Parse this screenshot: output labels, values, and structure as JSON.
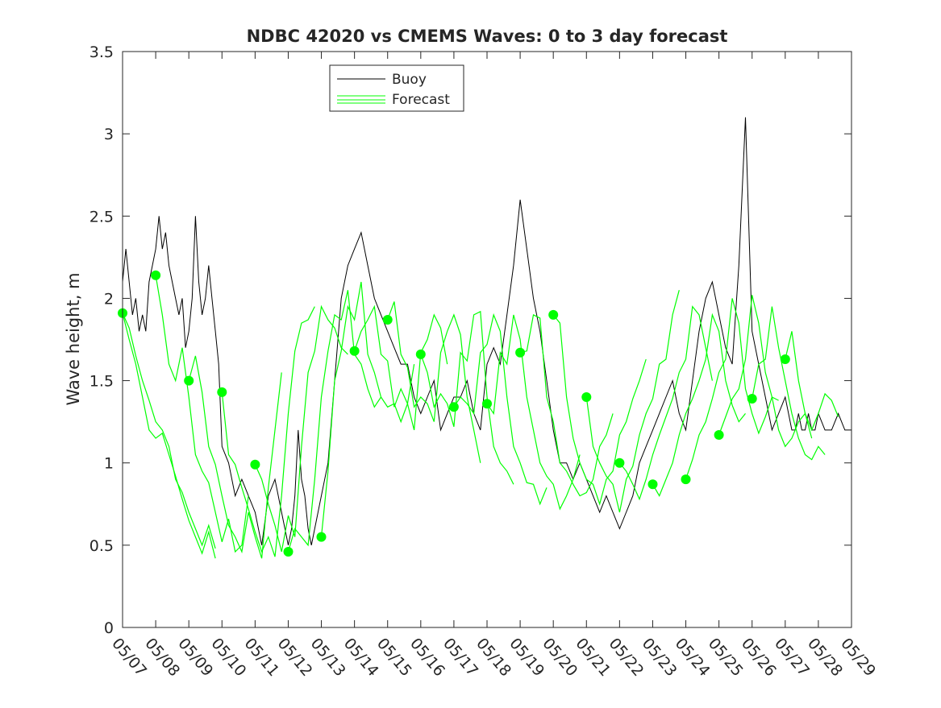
{
  "chart_data": {
    "type": "line",
    "title": "NDBC 42020 vs CMEMS Waves: 0 to 3 day forecast",
    "xlabel": "",
    "ylabel": "Wave height, m",
    "xlim": [
      "05/07",
      "05/29"
    ],
    "ylim": [
      0,
      3.5
    ],
    "x_ticks": [
      "05/07",
      "05/08",
      "05/09",
      "05/10",
      "05/11",
      "05/12",
      "05/13",
      "05/14",
      "05/15",
      "05/16",
      "05/17",
      "05/18",
      "05/19",
      "05/20",
      "05/21",
      "05/22",
      "05/23",
      "05/24",
      "05/25",
      "05/26",
      "05/27",
      "05/28",
      "05/29"
    ],
    "y_ticks": [
      "0",
      "0.5",
      "1",
      "1.5",
      "2",
      "2.5",
      "3",
      "3.5"
    ],
    "grid": false,
    "legend": {
      "position": "upper-center",
      "entries": [
        "Buoy",
        "Forecast"
      ]
    },
    "colors": {
      "buoy": "#000000",
      "forecast": "#00ff00"
    },
    "series": [
      {
        "name": "Buoy",
        "x_day_index": [
          0,
          0.1,
          0.2,
          0.3,
          0.4,
          0.5,
          0.6,
          0.7,
          0.8,
          0.9,
          1,
          1.1,
          1.2,
          1.3,
          1.4,
          1.5,
          1.6,
          1.7,
          1.8,
          1.9,
          2,
          2.1,
          2.2,
          2.3,
          2.4,
          2.5,
          2.6,
          2.7,
          2.8,
          2.9,
          3,
          3.2,
          3.4,
          3.6,
          3.8,
          4,
          4.2,
          4.4,
          4.6,
          4.8,
          5,
          5.1,
          5.2,
          5.3,
          5.4,
          5.5,
          5.6,
          5.7,
          5.8,
          5.9,
          6,
          6.2,
          6.4,
          6.6,
          6.8,
          7,
          7.2,
          7.4,
          7.6,
          7.8,
          8,
          8.2,
          8.4,
          8.6,
          8.8,
          9,
          9.2,
          9.4,
          9.6,
          9.8,
          10,
          10.2,
          10.4,
          10.6,
          10.8,
          11,
          11.2,
          11.4,
          11.6,
          11.8,
          12,
          12.2,
          12.4,
          12.6,
          12.8,
          13,
          13.2,
          13.4,
          13.6,
          13.8,
          14,
          14.2,
          14.4,
          14.6,
          14.8,
          15,
          15.2,
          15.4,
          15.6,
          15.8,
          16,
          16.2,
          16.4,
          16.6,
          16.8,
          17,
          17.2,
          17.4,
          17.6,
          17.8,
          18,
          18.2,
          18.4,
          18.6,
          18.8,
          19,
          19.2,
          19.4,
          19.6,
          19.8,
          20,
          20.1,
          20.2,
          20.3,
          20.4,
          20.5,
          20.6,
          20.7,
          20.8,
          20.9,
          21,
          21.2,
          21.4,
          21.6,
          21.8,
          22
        ],
        "values": [
          2.1,
          2.3,
          2.1,
          1.9,
          2.0,
          1.8,
          1.9,
          1.8,
          2.1,
          2.2,
          2.3,
          2.5,
          2.3,
          2.4,
          2.2,
          2.1,
          2.0,
          1.9,
          2.0,
          1.7,
          1.8,
          2.0,
          2.5,
          2.1,
          1.9,
          2.0,
          2.2,
          2.0,
          1.8,
          1.6,
          1.1,
          1.0,
          0.8,
          0.9,
          0.8,
          0.7,
          0.5,
          0.8,
          0.9,
          0.7,
          0.5,
          0.6,
          0.8,
          1.2,
          0.9,
          0.8,
          0.6,
          0.5,
          0.6,
          0.7,
          0.8,
          1.0,
          1.5,
          2.0,
          2.2,
          2.3,
          2.4,
          2.2,
          2.0,
          1.9,
          1.8,
          1.7,
          1.6,
          1.6,
          1.4,
          1.3,
          1.4,
          1.5,
          1.2,
          1.3,
          1.4,
          1.4,
          1.5,
          1.3,
          1.2,
          1.6,
          1.7,
          1.6,
          1.9,
          2.2,
          2.6,
          2.3,
          2.0,
          1.8,
          1.5,
          1.2,
          1.0,
          1.0,
          0.9,
          1.0,
          0.9,
          0.8,
          0.7,
          0.8,
          0.7,
          0.6,
          0.7,
          0.8,
          1.0,
          1.1,
          1.2,
          1.3,
          1.4,
          1.5,
          1.3,
          1.2,
          1.5,
          1.8,
          2.0,
          2.1,
          1.9,
          1.7,
          1.6,
          2.2,
          3.1,
          1.8,
          1.6,
          1.4,
          1.2,
          1.3,
          1.4,
          1.3,
          1.2,
          1.2,
          1.3,
          1.2,
          1.2,
          1.3,
          1.2,
          1.2,
          1.3,
          1.2,
          1.2,
          1.3,
          1.2,
          1.2
        ]
      },
      {
        "name": "Forecast",
        "runs": [
          {
            "start_day_index": 0,
            "values": [
              1.91,
              1.82,
              1.65,
              1.5,
              1.38,
              1.25,
              1.2,
              1.1,
              0.9,
              0.82,
              0.7,
              0.6,
              0.5,
              0.62,
              0.48
            ]
          },
          {
            "start_day_index": 0,
            "values": [
              1.91,
              1.75,
              1.6,
              1.4,
              1.2,
              1.15,
              1.18,
              1.05,
              0.92,
              0.78,
              0.65,
              0.55,
              0.45,
              0.58,
              0.42
            ]
          },
          {
            "start_day_index": 1,
            "values": [
              2.14,
              1.9,
              1.6,
              1.5,
              1.7,
              1.4,
              1.05,
              0.95,
              0.88,
              0.7,
              0.52,
              0.66,
              0.46,
              0.5,
              0.8
            ]
          },
          {
            "start_day_index": 2,
            "values": [
              1.5,
              1.65,
              1.43,
              1.1,
              0.99,
              0.8,
              0.62,
              0.55,
              0.46,
              0.7,
              0.55,
              0.42,
              0.85,
              1.2,
              1.55
            ]
          },
          {
            "start_day_index": 3,
            "values": [
              1.43,
              1.05,
              0.99,
              0.85,
              0.72,
              0.58,
              0.46,
              0.55,
              0.43,
              0.8,
              1.3,
              1.68,
              1.85,
              1.87,
              1.95
            ]
          },
          {
            "start_day_index": 4,
            "values": [
              0.99,
              0.9,
              0.75,
              0.62,
              0.46,
              0.68,
              0.55,
              1.1,
              1.55,
              1.68,
              1.95,
              1.87,
              1.82,
              1.7,
              1.66
            ]
          },
          {
            "start_day_index": 5,
            "values": [
              0.46,
              0.6,
              0.55,
              0.5,
              0.9,
              1.4,
              1.68,
              1.9,
              1.87,
              2.05,
              1.66,
              1.6,
              1.45,
              1.34,
              1.4
            ]
          },
          {
            "start_day_index": 6,
            "values": [
              0.55,
              0.95,
              1.5,
              1.68,
              1.95,
              1.87,
              2.1,
              1.66,
              1.55,
              1.4,
              1.34,
              1.36,
              1.25,
              1.36,
              1.6
            ]
          },
          {
            "start_day_index": 7,
            "values": [
              1.68,
              1.8,
              1.87,
              1.95,
              1.66,
              1.62,
              1.34,
              1.45,
              1.36,
              1.2,
              1.67,
              1.75,
              1.9,
              1.82,
              1.6
            ]
          },
          {
            "start_day_index": 8,
            "values": [
              1.87,
              1.98,
              1.66,
              1.58,
              1.34,
              1.4,
              1.36,
              1.25,
              1.67,
              1.8,
              1.9,
              1.78,
              1.4,
              1.2,
              1.0
            ]
          },
          {
            "start_day_index": 9,
            "values": [
              1.66,
              1.55,
              1.34,
              1.42,
              1.36,
              1.22,
              1.67,
              1.62,
              1.9,
              1.92,
              1.4,
              1.1,
              1.0,
              0.95,
              0.87
            ]
          },
          {
            "start_day_index": 10,
            "values": [
              1.34,
              1.4,
              1.36,
              1.3,
              1.67,
              1.72,
              1.9,
              1.8,
              1.4,
              1.1,
              1.0,
              0.88,
              0.87,
              0.75,
              0.85
            ]
          },
          {
            "start_day_index": 11,
            "values": [
              1.36,
              1.3,
              1.67,
              1.6,
              1.9,
              1.75,
              1.4,
              1.2,
              1.0,
              0.92,
              0.87,
              0.72,
              0.8,
              0.9,
              1.05
            ]
          },
          {
            "start_day_index": 12,
            "values": [
              1.67,
              1.68,
              1.9,
              1.88,
              1.4,
              1.25,
              1.0,
              0.95,
              0.87,
              0.8,
              0.82,
              0.9,
              1.1,
              1.17,
              1.3
            ]
          },
          {
            "start_day_index": 13,
            "values": [
              1.9,
              1.85,
              1.4,
              1.15,
              1.0,
              0.9,
              0.87,
              0.75,
              0.9,
              0.95,
              1.17,
              1.25,
              1.39,
              1.5,
              1.63
            ]
          },
          {
            "start_day_index": 14,
            "values": [
              1.4,
              1.1,
              1.0,
              0.92,
              0.87,
              0.7,
              0.9,
              0.98,
              1.17,
              1.3,
              1.39,
              1.6,
              1.63,
              1.9,
              2.05
            ]
          },
          {
            "start_day_index": 15,
            "values": [
              1.0,
              0.95,
              0.87,
              0.78,
              0.9,
              1.05,
              1.17,
              1.28,
              1.39,
              1.55,
              1.63,
              1.95,
              1.9,
              1.7,
              1.5
            ]
          },
          {
            "start_day_index": 16,
            "values": [
              0.87,
              0.8,
              0.9,
              1.0,
              1.17,
              1.3,
              1.39,
              1.5,
              1.63,
              1.9,
              1.8,
              1.5,
              1.35,
              1.25,
              1.3
            ]
          },
          {
            "start_day_index": 17,
            "values": [
              0.9,
              1.02,
              1.17,
              1.25,
              1.39,
              1.55,
              1.63,
              2.0,
              1.85,
              1.45,
              1.3,
              1.18,
              1.28,
              1.4,
              1.38
            ]
          },
          {
            "start_day_index": 18,
            "values": [
              1.17,
              1.28,
              1.39,
              1.45,
              1.63,
              2.02,
              1.85,
              1.55,
              1.4,
              1.2,
              1.1,
              1.15,
              1.25,
              1.3,
              1.15
            ]
          },
          {
            "start_day_index": 19,
            "values": [
              1.39,
              1.6,
              1.63,
              1.95,
              1.7,
              1.5,
              1.3,
              1.15,
              1.05,
              1.02,
              1.1,
              1.05
            ]
          },
          {
            "start_day_index": 20,
            "values": [
              1.63,
              1.8,
              1.5,
              1.3,
              1.2,
              1.3,
              1.42,
              1.38,
              1.28
            ]
          }
        ],
        "run_step_days": 0.2,
        "initial_points": {
          "day_index": [
            0,
            1,
            2,
            3,
            4,
            5,
            6,
            7,
            8,
            9,
            10,
            11,
            12,
            13,
            14,
            15,
            16,
            17,
            18,
            19,
            20
          ],
          "values": [
            1.91,
            2.14,
            1.5,
            1.43,
            0.99,
            0.46,
            0.55,
            1.68,
            1.87,
            1.66,
            1.34,
            1.36,
            1.67,
            1.9,
            1.4,
            1.0,
            0.87,
            0.9,
            1.17,
            1.39,
            1.63
          ]
        }
      }
    ]
  }
}
